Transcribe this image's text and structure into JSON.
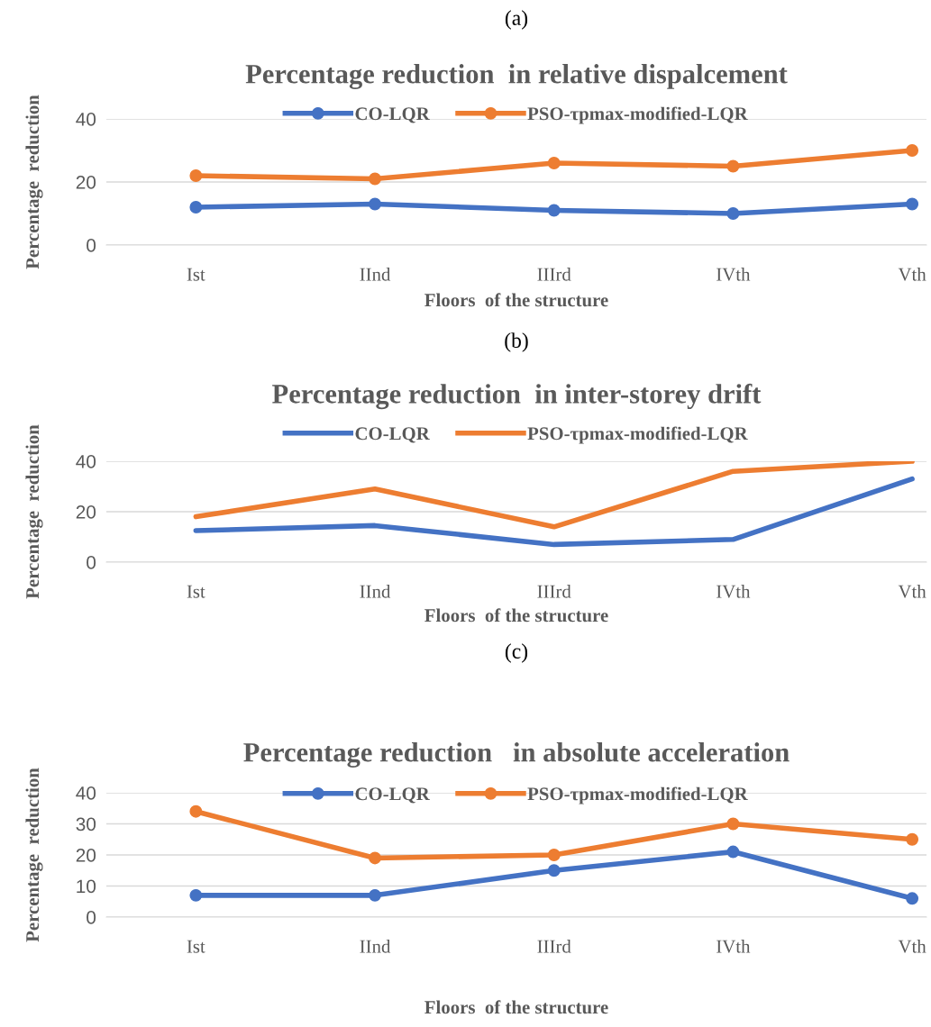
{
  "chart_data": [
    {
      "type": "line",
      "title": "Percentage reduction  in relative dispalcement",
      "xlabel": "Floors  of the structure",
      "ylabel": "Percentage  reduction",
      "annotations": [
        "(a)"
      ],
      "categories": [
        "Ist",
        "IInd",
        "IIIrd",
        "IVth",
        "Vth"
      ],
      "series": [
        {
          "name": "CO-LQR",
          "color": "#4472c4",
          "values": [
            12,
            13,
            11,
            10,
            13
          ]
        },
        {
          "name": "PSO-τpmax-modified-LQR",
          "color": "#ed7d31",
          "values": [
            22,
            21,
            26,
            25,
            30
          ]
        }
      ],
      "ylim": [
        0,
        40
      ],
      "yticks": [
        0,
        20,
        40
      ],
      "grid": "y",
      "legend": "top",
      "marker": "circle"
    },
    {
      "type": "line",
      "title": "Percentage reduction  in inter-storey drift",
      "xlabel": "Floors  of the structure",
      "ylabel": "Percentage  reduction",
      "annotations": [
        "(b)"
      ],
      "categories": [
        "Ist",
        "IInd",
        "IIIrd",
        "IVth",
        "Vth"
      ],
      "series": [
        {
          "name": "CO-LQR",
          "color": "#4472c4",
          "values": [
            12.5,
            14.5,
            7,
            9,
            33
          ]
        },
        {
          "name": "PSO-τpmax-modified-LQR",
          "color": "#ed7d31",
          "values": [
            18,
            29,
            14,
            36,
            40
          ]
        }
      ],
      "ylim": [
        0,
        40
      ],
      "yticks": [
        0,
        20,
        40
      ],
      "grid": "y",
      "legend": "top",
      "marker": "none"
    },
    {
      "type": "line",
      "title": "Percentage reduction   in absolute acceleration",
      "xlabel": "Floors  of the structure",
      "ylabel": "Percentage  reduction",
      "annotations": [
        "(c)"
      ],
      "categories": [
        "Ist",
        "IInd",
        "IIIrd",
        "IVth",
        "Vth"
      ],
      "series": [
        {
          "name": "CO-LQR",
          "color": "#4472c4",
          "values": [
            7,
            7,
            15,
            21,
            6
          ]
        },
        {
          "name": "PSO-τpmax-modified-LQR",
          "color": "#ed7d31",
          "values": [
            34,
            19,
            20,
            30,
            25
          ]
        }
      ],
      "ylim": [
        0,
        40
      ],
      "yticks": [
        0,
        10,
        20,
        30,
        40
      ],
      "grid": "y",
      "legend": "top",
      "marker": "circle"
    }
  ]
}
